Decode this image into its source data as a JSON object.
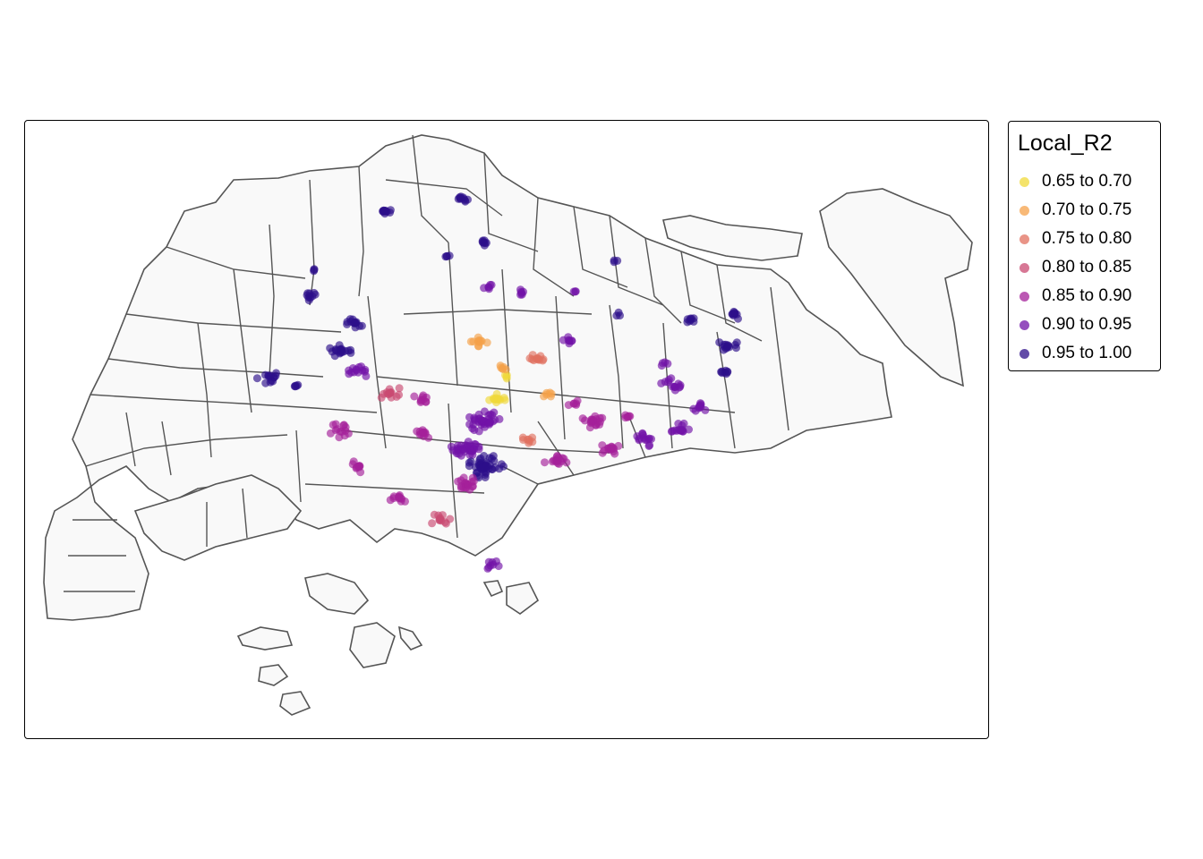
{
  "legend": {
    "title": "Local_R2",
    "classes": [
      {
        "label": "0.65 to 0.70",
        "color": "#f0d93a"
      },
      {
        "label": "0.70 to 0.75",
        "color": "#f5a24a"
      },
      {
        "label": "0.75 to 0.80",
        "color": "#e1705f"
      },
      {
        "label": "0.80 to 0.85",
        "color": "#c94a72"
      },
      {
        "label": "0.85 to 0.90",
        "color": "#a4209a"
      },
      {
        "label": "0.90 to 0.95",
        "color": "#7213a8"
      },
      {
        "label": "0.95 to 1.00",
        "color": "#2d0f8a"
      }
    ]
  },
  "map": {
    "land_fill": "#f9f9f9",
    "boundary_color": "#555555"
  }
}
